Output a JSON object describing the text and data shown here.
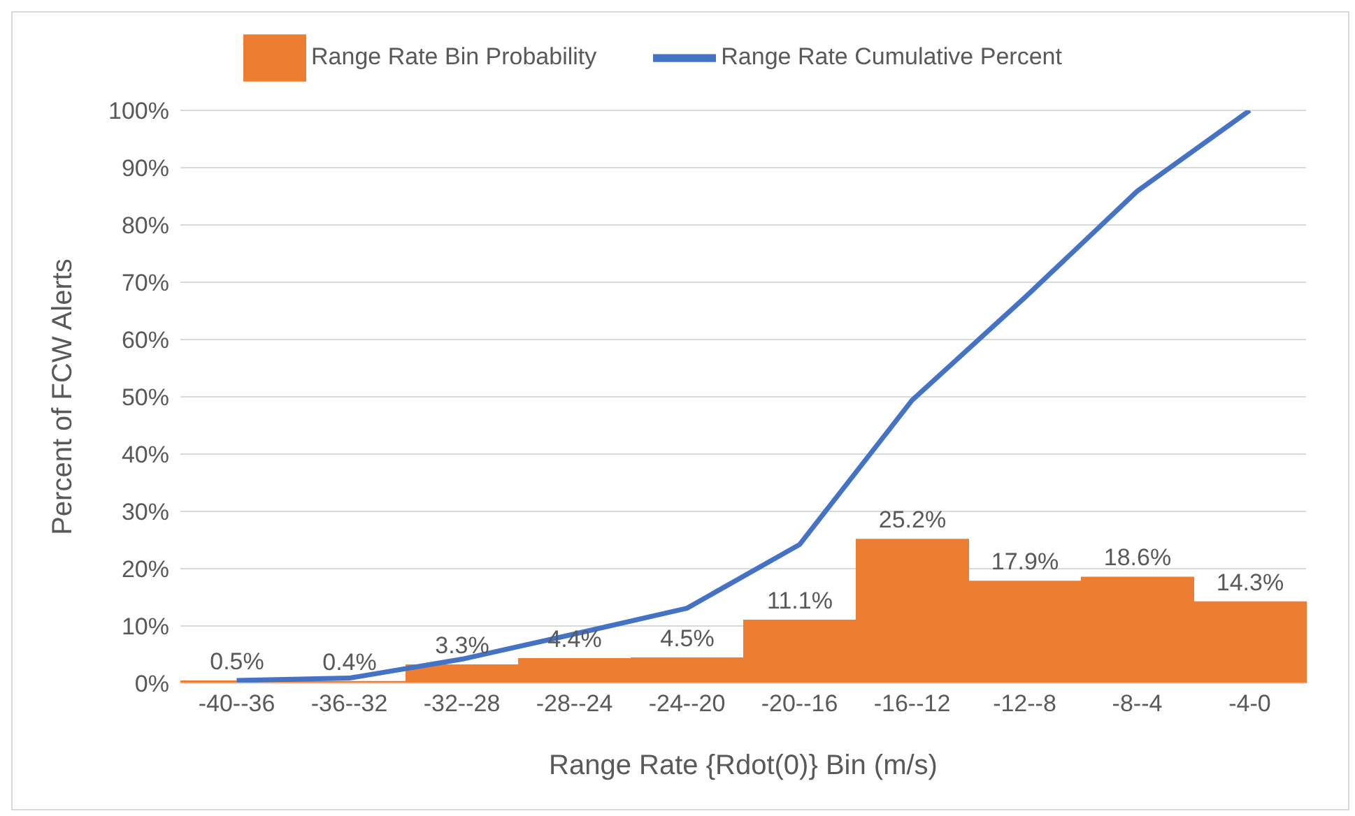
{
  "chart_data": {
    "type": "bar",
    "xlabel": "Range Rate {Rdot(0)} Bin (m/s)",
    "ylabel": "Percent of FCW Alerts",
    "categories": [
      "-40--36",
      "-36--32",
      "-32--28",
      "-28--24",
      "-24--20",
      "-20--16",
      "-16--12",
      "-12--8",
      "-8--4",
      "-4-0"
    ],
    "series": [
      {
        "name": "Range Rate Bin Probability",
        "color": "#ed7d31",
        "values": [
          0.5,
          0.4,
          3.3,
          4.4,
          4.5,
          11.1,
          25.2,
          17.9,
          18.6,
          14.3
        ],
        "value_labels": [
          "0.5%",
          "0.4%",
          "3.3%",
          "4.4%",
          "4.5%",
          "11.1%",
          "25.2%",
          "17.9%",
          "18.6%",
          "14.3%"
        ]
      },
      {
        "name": "Range Rate Cumulative Percent",
        "type": "line",
        "color": "#4472c4",
        "values": [
          0.5,
          0.9,
          4.2,
          8.6,
          13.1,
          24.2,
          49.4,
          67.3,
          85.9,
          100
        ]
      }
    ],
    "ylim": [
      0,
      100
    ],
    "yticks": [
      {
        "value": 0,
        "label": "0%"
      },
      {
        "value": 10,
        "label": "10%"
      },
      {
        "value": 20,
        "label": "20%"
      },
      {
        "value": 30,
        "label": "30%"
      },
      {
        "value": 40,
        "label": "40%"
      },
      {
        "value": 50,
        "label": "50%"
      },
      {
        "value": 60,
        "label": "60%"
      },
      {
        "value": 70,
        "label": "70%"
      },
      {
        "value": 80,
        "label": "80%"
      },
      {
        "value": 90,
        "label": "90%"
      },
      {
        "value": 100,
        "label": "100%"
      }
    ],
    "grid": "y",
    "legend": "top",
    "marker": "none",
    "line_style": "solid"
  }
}
